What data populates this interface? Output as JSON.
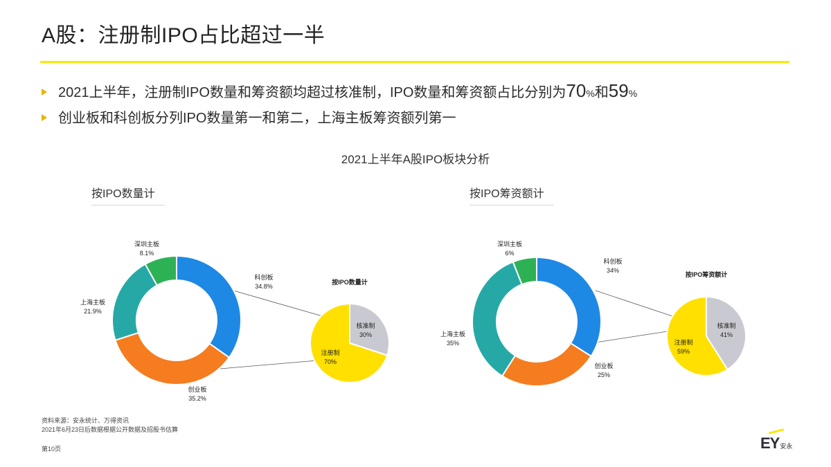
{
  "page_title": "A股：注册制IPO占比超过一半",
  "bullets": {
    "b1_pre": "2021上半年，注册制IPO数量和筹资额均超过核准制，IPO数量和筹资额占比分别为",
    "b1_v1": "70",
    "b1_pct1": "%",
    "b1_mid": "和",
    "b1_v2": "59",
    "b1_pct2": "%",
    "b2": "创业板和科创板分列IPO数量第一和第二，上海主板筹资额列第一"
  },
  "subtitles": {
    "left": "按IPO数量计",
    "right": "按IPO筹资额计"
  },
  "footer": {
    "source1": "资料来源：安永统计、万得资讯",
    "source2": "2021年6月23日后数据根据公开数据及招股书估算",
    "page": "第10页",
    "logo": "EY",
    "logo_cn": "安永"
  },
  "colors": {
    "blue": "#1E88E5",
    "orange": "#F57C1F",
    "teal": "#26A9A6",
    "green": "#2DB155",
    "yellow": "#FFE000",
    "gray": "#C9C9D1",
    "accent": "#FFE600"
  },
  "chart_data": [
    {
      "type": "pie",
      "title": "2021上半年A股IPO板块分析",
      "subtitle": "按IPO数量计",
      "style": "donut",
      "labels": [
        "科创板",
        "创业板",
        "上海主板",
        "深圳主板"
      ],
      "values": [
        34.8,
        35.2,
        21.9,
        8.1
      ],
      "value_labels": [
        "34.8%",
        "35.2%",
        "21.9%",
        "8.1%"
      ],
      "colors": [
        "#1E88E5",
        "#F57C1F",
        "#26A9A6",
        "#2DB155"
      ]
    },
    {
      "type": "pie",
      "title": "按IPO数量计",
      "labels": [
        "核准制",
        "注册制"
      ],
      "values": [
        30,
        70
      ],
      "value_labels": [
        "30%",
        "70%"
      ],
      "colors": [
        "#C9C9D1",
        "#FFE000"
      ]
    },
    {
      "type": "pie",
      "title": "2021上半年A股IPO板块分析",
      "subtitle": "按IPO筹资额计",
      "style": "donut",
      "labels": [
        "科创板",
        "创业板",
        "上海主板",
        "深圳主板"
      ],
      "values": [
        34,
        25,
        35,
        6
      ],
      "value_labels": [
        "34%",
        "25%",
        "35%",
        "6%"
      ],
      "colors": [
        "#1E88E5",
        "#F57C1F",
        "#26A9A6",
        "#2DB155"
      ]
    },
    {
      "type": "pie",
      "title": "按IPO筹资额计",
      "labels": [
        "核准制",
        "注册制"
      ],
      "values": [
        41,
        59
      ],
      "value_labels": [
        "41%",
        "59%"
      ],
      "colors": [
        "#C9C9D1",
        "#FFE000"
      ]
    }
  ]
}
